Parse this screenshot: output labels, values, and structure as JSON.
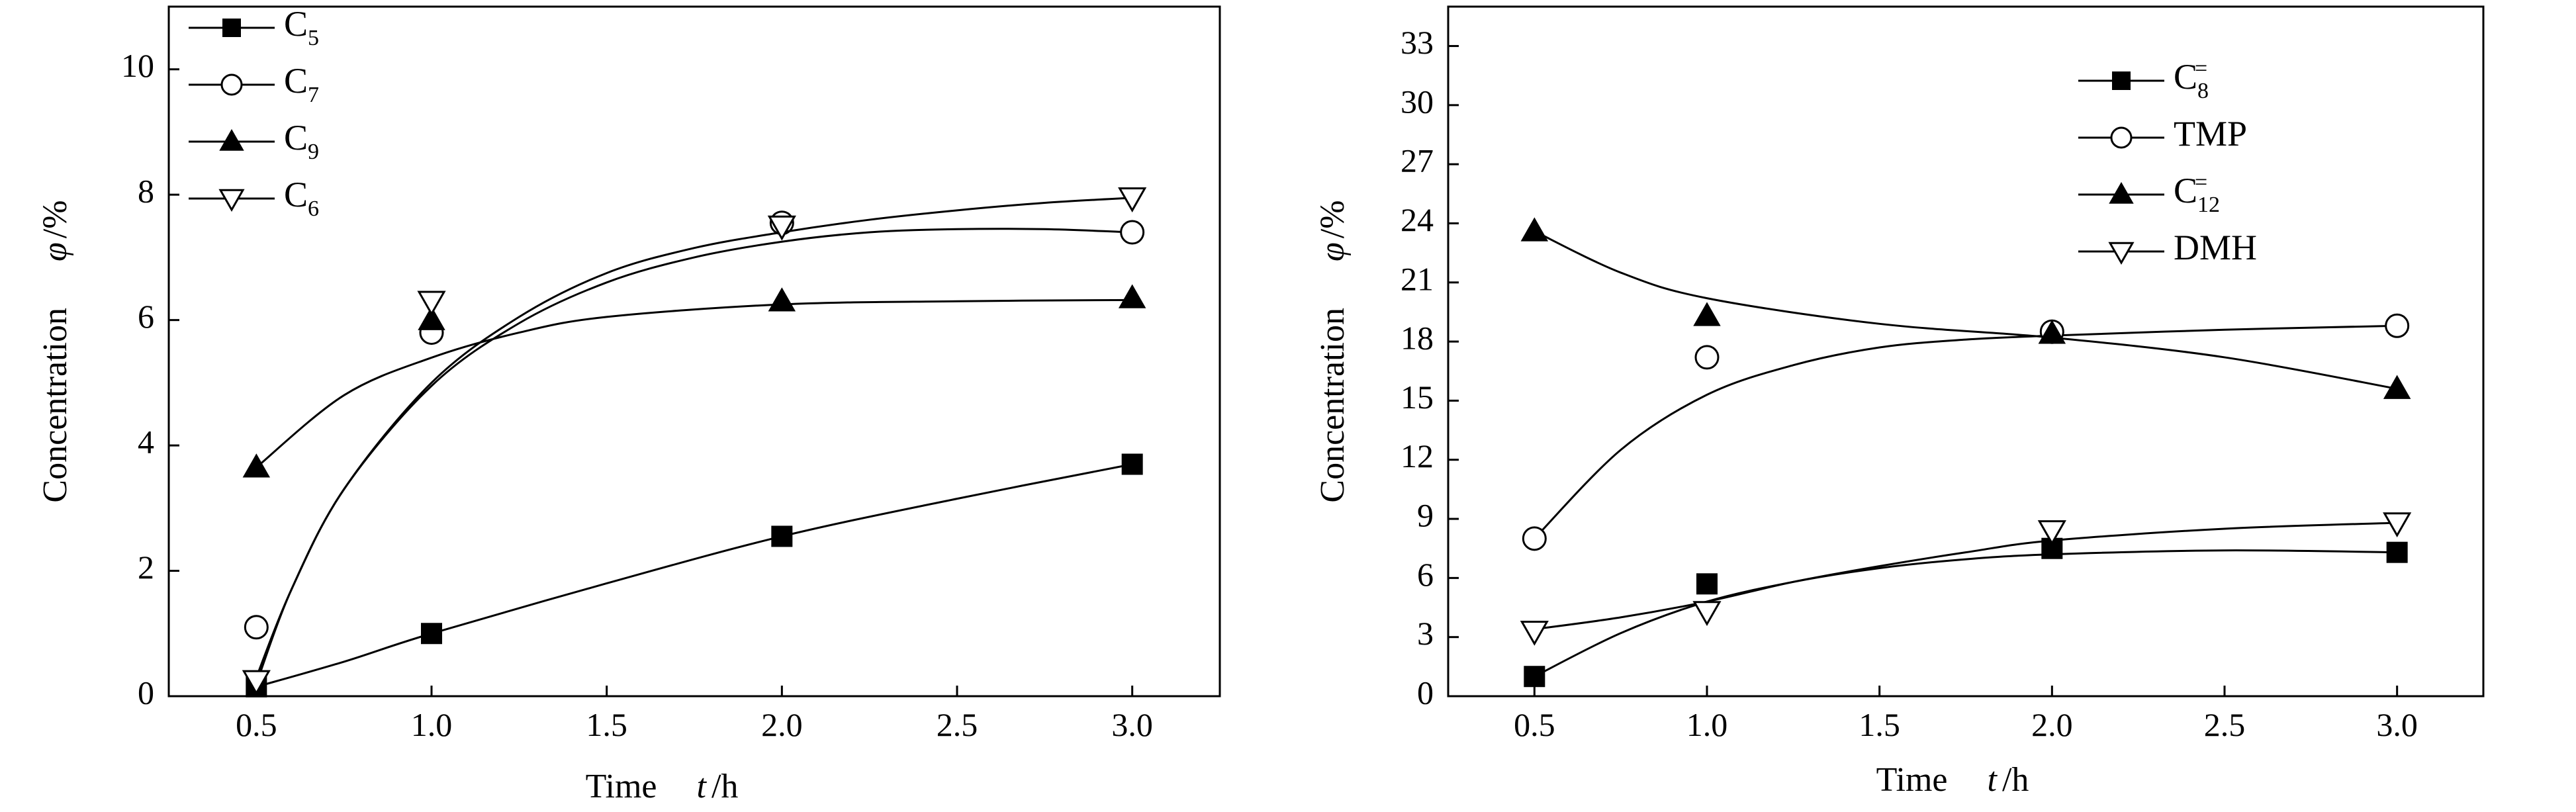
{
  "chart_data": [
    {
      "type": "line",
      "xlabel_prefix": "Time",
      "xlabel_var": "t",
      "xlabel_unit": "/h",
      "ylabel_prefix": "Concentration",
      "ylabel_var": "φ",
      "ylabel_unit": "/%",
      "xlim": [
        0.25,
        3.25
      ],
      "ylim": [
        0,
        11
      ],
      "xticks": [
        "0.5",
        "1.0",
        "1.5",
        "2.0",
        "2.5",
        "3.0"
      ],
      "yticks": [
        "0",
        "2",
        "4",
        "6",
        "8",
        "10"
      ],
      "grid": false,
      "legend_position": "top-left",
      "series": [
        {
          "name": "C",
          "sub": "5",
          "sup": "",
          "marker": "square-filled",
          "x": [
            0.5,
            1.0,
            2.0,
            3.0
          ],
          "y": [
            0.15,
            1.0,
            2.55,
            3.7
          ],
          "fit": [
            [
              0.5,
              0.15
            ],
            [
              0.75,
              0.55
            ],
            [
              1.0,
              1.0
            ],
            [
              1.5,
              1.8
            ],
            [
              2.0,
              2.55
            ],
            [
              2.5,
              3.15
            ],
            [
              3.0,
              3.7
            ]
          ]
        },
        {
          "name": "C",
          "sub": "7",
          "sup": "",
          "marker": "circle-open",
          "x": [
            0.5,
            1.0,
            2.0,
            3.0
          ],
          "y": [
            1.1,
            5.8,
            7.55,
            7.4
          ],
          "fit": [
            [
              0.5,
              0.3
            ],
            [
              0.6,
              1.7
            ],
            [
              0.75,
              3.3
            ],
            [
              1.0,
              4.95
            ],
            [
              1.25,
              5.95
            ],
            [
              1.5,
              6.6
            ],
            [
              1.75,
              7.0
            ],
            [
              2.0,
              7.25
            ],
            [
              2.25,
              7.4
            ],
            [
              2.5,
              7.45
            ],
            [
              2.75,
              7.45
            ],
            [
              3.0,
              7.4
            ]
          ]
        },
        {
          "name": "C",
          "sub": "9",
          "sup": "",
          "marker": "triangle-up-filled",
          "x": [
            0.5,
            1.0,
            2.0,
            3.0
          ],
          "y": [
            3.65,
            6.0,
            6.3,
            6.35
          ],
          "fit": [
            [
              0.5,
              3.65
            ],
            [
              0.75,
              4.8
            ],
            [
              1.0,
              5.4
            ],
            [
              1.25,
              5.8
            ],
            [
              1.5,
              6.05
            ],
            [
              2.0,
              6.25
            ],
            [
              2.5,
              6.3
            ],
            [
              3.0,
              6.32
            ]
          ]
        },
        {
          "name": "C",
          "sub": "6",
          "sup": "",
          "marker": "triangle-down-open",
          "x": [
            0.5,
            1.0,
            2.0,
            3.0
          ],
          "y": [
            0.25,
            6.3,
            7.5,
            7.95
          ],
          "fit": [
            [
              0.5,
              0.2
            ],
            [
              0.6,
              1.7
            ],
            [
              0.75,
              3.3
            ],
            [
              1.0,
              5.0
            ],
            [
              1.25,
              6.05
            ],
            [
              1.5,
              6.75
            ],
            [
              1.75,
              7.15
            ],
            [
              2.0,
              7.4
            ],
            [
              2.25,
              7.6
            ],
            [
              2.5,
              7.75
            ],
            [
              2.75,
              7.87
            ],
            [
              3.0,
              7.95
            ]
          ]
        }
      ]
    },
    {
      "type": "line",
      "xlabel_prefix": "Time",
      "xlabel_var": "t",
      "xlabel_unit": "/h",
      "ylabel_prefix": "Concentration",
      "ylabel_var": "φ",
      "ylabel_unit": "/%",
      "xlim": [
        0.25,
        3.25
      ],
      "ylim": [
        0,
        35
      ],
      "xticks": [
        "0.5",
        "1.0",
        "1.5",
        "2.0",
        "2.5",
        "3.0"
      ],
      "yticks": [
        "0",
        "3",
        "6",
        "9",
        "12",
        "15",
        "18",
        "21",
        "24",
        "27",
        "30",
        "33"
      ],
      "grid": false,
      "legend_position": "top-right",
      "series": [
        {
          "name": "C",
          "sub": "8",
          "sup": "=",
          "marker": "square-filled",
          "x": [
            0.5,
            1.0,
            2.0,
            3.0
          ],
          "y": [
            1.0,
            5.7,
            7.5,
            7.3
          ],
          "fit": [
            [
              0.5,
              1.0
            ],
            [
              0.75,
              3.2
            ],
            [
              1.0,
              4.8
            ],
            [
              1.25,
              5.8
            ],
            [
              1.5,
              6.5
            ],
            [
              1.75,
              6.95
            ],
            [
              2.0,
              7.2
            ],
            [
              2.5,
              7.4
            ],
            [
              3.0,
              7.3
            ]
          ]
        },
        {
          "name": "TMP",
          "sub": "",
          "sup": "",
          "marker": "circle-open",
          "x": [
            0.5,
            1.0,
            2.0,
            3.0
          ],
          "y": [
            8.0,
            17.2,
            18.5,
            18.8
          ],
          "fit": [
            [
              0.5,
              8.0
            ],
            [
              0.75,
              12.5
            ],
            [
              1.0,
              15.3
            ],
            [
              1.25,
              16.8
            ],
            [
              1.5,
              17.7
            ],
            [
              1.75,
              18.1
            ],
            [
              2.0,
              18.3
            ],
            [
              2.5,
              18.6
            ],
            [
              3.0,
              18.8
            ]
          ]
        },
        {
          "name": "C",
          "sub": "12",
          "sup": "=",
          "marker": "triangle-up-filled",
          "x": [
            0.5,
            1.0,
            2.0,
            3.0
          ],
          "y": [
            23.6,
            19.3,
            18.4,
            15.6
          ],
          "fit": [
            [
              0.5,
              23.6
            ],
            [
              0.75,
              21.5
            ],
            [
              1.0,
              20.2
            ],
            [
              1.5,
              18.9
            ],
            [
              2.0,
              18.2
            ],
            [
              2.5,
              17.2
            ],
            [
              3.0,
              15.6
            ]
          ]
        },
        {
          "name": "DMH",
          "sub": "",
          "sup": "",
          "marker": "triangle-down-open",
          "x": [
            0.5,
            1.0,
            2.0,
            3.0
          ],
          "y": [
            3.3,
            4.3,
            8.4,
            8.8
          ],
          "fit": [
            [
              0.5,
              3.4
            ],
            [
              0.75,
              4.0
            ],
            [
              1.0,
              4.8
            ],
            [
              1.25,
              5.8
            ],
            [
              1.5,
              6.6
            ],
            [
              1.75,
              7.3
            ],
            [
              2.0,
              7.9
            ],
            [
              2.5,
              8.5
            ],
            [
              3.0,
              8.8
            ]
          ]
        }
      ]
    }
  ]
}
